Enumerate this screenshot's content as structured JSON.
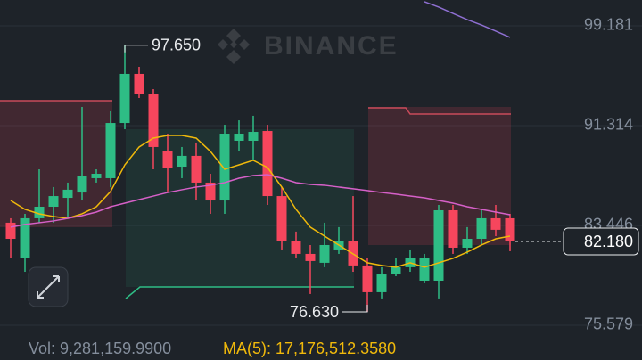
{
  "chart_data": {
    "type": "candlestick",
    "watermark": "BINANCE",
    "up_color": "#2ebd85",
    "down_color": "#f6465d",
    "open": [
      83.66,
      80.85,
      84.01,
      84.92,
      85.62,
      86.04,
      87.17,
      87.17,
      91.52,
      95.39,
      93.84,
      89.28,
      88.08,
      88.93,
      86.82,
      85.41,
      90.12,
      90.12,
      90.89,
      85.76,
      82.25,
      81.2,
      80.5,
      81.55,
      82.25,
      80.29,
      78.18,
      79.58,
      80.15,
      79.09,
      79.09,
      84.64,
      81.69,
      82.39,
      84.01,
      84.01
    ],
    "high": [
      84.01,
      84.36,
      87.87,
      86.47,
      86.82,
      92.79,
      87.87,
      92.44,
      97.65,
      95.95,
      94.19,
      90.68,
      89.63,
      89.98,
      87.52,
      91.38,
      91.73,
      92.09,
      91.38,
      86.47,
      82.96,
      81.9,
      83.66,
      83.31,
      85.76,
      80.85,
      80.15,
      80.85,
      81.55,
      81.2,
      85.06,
      85.06,
      83.31,
      84.71,
      85.06,
      84.36
    ],
    "low": [
      80.85,
      79.79,
      83.66,
      83.66,
      84.01,
      85.41,
      86.82,
      86.47,
      91.03,
      93.49,
      87.87,
      86.12,
      87.17,
      85.41,
      84.36,
      84.36,
      89.28,
      88.58,
      85.06,
      81.55,
      80.85,
      78.04,
      80.15,
      81.2,
      79.79,
      76.63,
      77.69,
      79.44,
      79.79,
      78.88,
      77.69,
      81.2,
      81.2,
      81.9,
      82.6,
      81.41
    ],
    "close": [
      82.39,
      84.01,
      84.92,
      85.76,
      86.26,
      87.31,
      87.52,
      91.52,
      95.39,
      93.84,
      89.63,
      88.01,
      88.93,
      86.82,
      85.41,
      90.68,
      90.68,
      90.82,
      85.76,
      82.25,
      81.2,
      80.64,
      81.9,
      82.25,
      80.29,
      78.18,
      79.58,
      80.15,
      80.85,
      80.85,
      84.64,
      81.69,
      82.39,
      84.01,
      83.1,
      82.18
    ],
    "lines": [
      {
        "color": "#f0b90b",
        "values": [
          85.41,
          84.71,
          84.36,
          84.15,
          84.01,
          84.36,
          84.92,
          86.12,
          88.22,
          89.63,
          90.33,
          90.54,
          90.54,
          90.33,
          89.28,
          87.87,
          88.22,
          88.58,
          88.01,
          86.47,
          84.71,
          83.31,
          82.6,
          81.9,
          81.2,
          80.5,
          80.29,
          80.15,
          80.5,
          80.15,
          80.5,
          80.85,
          81.34,
          81.9,
          82.39,
          82.6
        ]
      },
      {
        "color": "#d660c8",
        "values": [
          83.31,
          83.52,
          83.66,
          83.8,
          84.01,
          84.22,
          84.5,
          84.92,
          85.2,
          85.48,
          85.76,
          86.04,
          86.26,
          86.47,
          86.61,
          86.82,
          87.17,
          87.38,
          87.45,
          87.17,
          86.82,
          86.68,
          86.61,
          86.47,
          86.33,
          86.19,
          86.04,
          85.91,
          85.76,
          85.62,
          85.41,
          85.2,
          84.92,
          84.71,
          84.5,
          84.29
        ]
      },
      {
        "color": "#8e6fd1",
        "values": [
          null,
          null,
          null,
          null,
          null,
          null,
          null,
          null,
          null,
          null,
          null,
          null,
          null,
          null,
          null,
          null,
          null,
          null,
          null,
          null,
          null,
          null,
          null,
          null,
          null,
          null,
          null,
          null,
          null,
          101.08,
          100.66,
          100.16,
          99.67,
          99.25,
          98.76,
          98.27
        ]
      }
    ],
    "ylim": [
      74.523,
      101.218
    ],
    "yticks": [
      99.181,
      91.314,
      83.446,
      75.579
    ],
    "grid": true,
    "high_label": {
      "value": 97.65,
      "label": "97.650"
    },
    "low_label": {
      "value": 76.63,
      "label": "76.630"
    },
    "last_price": {
      "value": 82.18,
      "label": "82.180"
    },
    "volume_text": "Vol: 9,281,159.9900",
    "ma_text": "MA(5): 17,176,512.3580"
  }
}
